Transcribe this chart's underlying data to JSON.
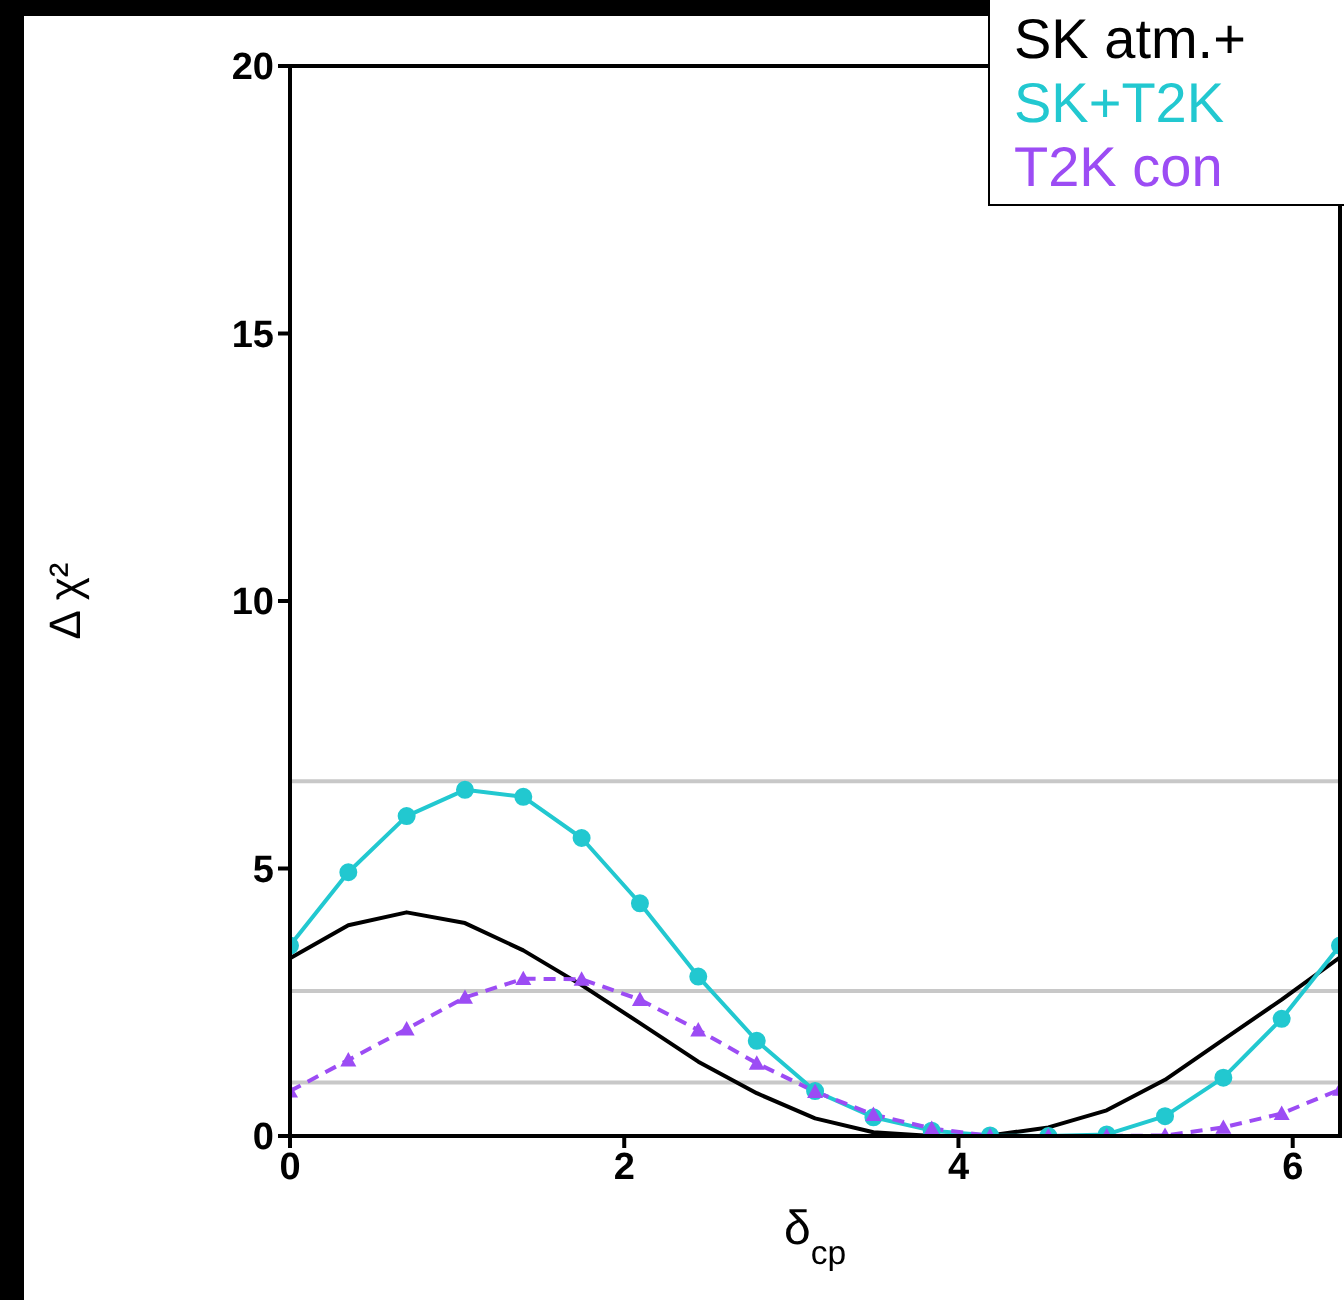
{
  "chart_data": {
    "type": "line",
    "xlabel": "δ$_{cp}$",
    "ylabel": "Δ χ²",
    "x": [
      0,
      0.349,
      0.698,
      1.047,
      1.396,
      1.745,
      2.094,
      2.443,
      2.793,
      3.142,
      3.491,
      3.84,
      4.189,
      4.538,
      4.887,
      5.236,
      5.585,
      5.934,
      6.283
    ],
    "xlim": [
      0,
      6.283
    ],
    "xticks": [
      0,
      2,
      4,
      6
    ],
    "ylim": [
      0,
      20
    ],
    "yticks": [
      0,
      5,
      10,
      15,
      20
    ],
    "grid": false,
    "legend": "top right",
    "series": [
      {
        "name": "SK atm.+",
        "color": "#000000",
        "marker": "none",
        "line_style": "solid",
        "values": [
          3.32,
          3.94,
          4.18,
          3.98,
          3.47,
          2.82,
          2.11,
          1.39,
          0.8,
          0.33,
          0.07,
          0,
          0.01,
          0.16,
          0.48,
          1.05,
          1.8,
          2.55,
          3.34
        ]
      },
      {
        "name": "SK+T2K",
        "color": "#22c8d0",
        "marker": "circle",
        "line_style": "solid",
        "values": [
          3.56,
          4.93,
          5.98,
          6.47,
          6.34,
          5.57,
          4.35,
          2.98,
          1.78,
          0.84,
          0.35,
          0.1,
          0.01,
          0,
          0.03,
          0.37,
          1.09,
          2.19,
          3.56
        ]
      },
      {
        "name": "T2K con",
        "color": "#9c4cf4",
        "marker": "triangle",
        "line_style": "dashed",
        "values": [
          0.84,
          1.42,
          2.0,
          2.59,
          2.94,
          2.93,
          2.55,
          1.98,
          1.36,
          0.83,
          0.4,
          0.14,
          0,
          0,
          0,
          0.01,
          0.16,
          0.42,
          0.87
        ]
      }
    ],
    "ref_lines": [
      {
        "axis": "y",
        "value": 1,
        "color": "#c8c8c8"
      },
      {
        "axis": "y",
        "value": 2.71,
        "color": "#c8c8c8"
      },
      {
        "axis": "y",
        "value": 6.63,
        "color": "#c8c8c8"
      }
    ]
  }
}
